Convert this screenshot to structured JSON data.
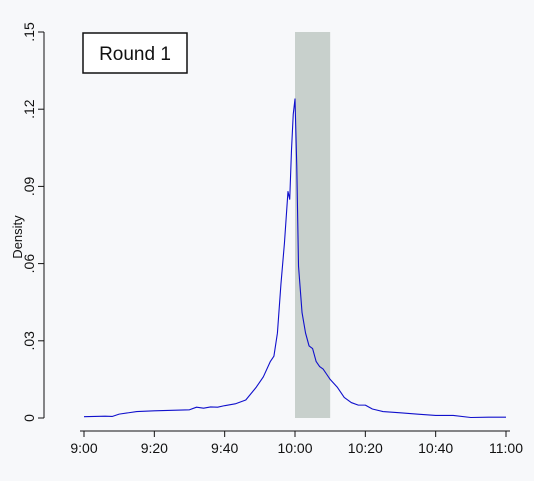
{
  "chart_data": {
    "type": "line",
    "panel_label": "Round 1",
    "xlabel": "",
    "ylabel": "Density",
    "x_unit": "time of day",
    "xlim": [
      "9:00",
      "11:00"
    ],
    "ylim": [
      0,
      0.15
    ],
    "x_ticks": [
      "9:00",
      "9:20",
      "9:40",
      "10:00",
      "10:20",
      "10:40",
      "11:00"
    ],
    "y_ticks": [
      "0",
      ".03",
      ".06",
      ".09",
      ".12",
      ".15"
    ],
    "grid": false,
    "legend": "none",
    "shaded_band": {
      "from": "10:00",
      "to": "10:10",
      "color": "#c8d0cc"
    },
    "line_color": "#1010cc",
    "series": [
      {
        "x": [
          "9:00",
          "9:06",
          "9:08",
          "9:10",
          "9:15",
          "9:20",
          "9:25",
          "9:30",
          "9:32",
          "9:34",
          "9:36",
          "9:38",
          "9:40",
          "9:43",
          "9:46",
          "9:49",
          "9:51",
          "9:53",
          "9:54",
          "9:55",
          "9:56",
          "9:57",
          "9:58",
          "9:58:30",
          "9:59",
          "9:59:30",
          "10:00",
          "10:00:30",
          "10:01",
          "10:02",
          "10:03",
          "10:04",
          "10:05",
          "10:06",
          "10:07",
          "10:08",
          "10:09",
          "10:10",
          "10:12",
          "10:14",
          "10:16",
          "10:18",
          "10:20",
          "10:22",
          "10:25",
          "10:30",
          "10:35",
          "10:40",
          "10:45",
          "10:50",
          "10:55",
          "11:00"
        ],
        "values": [
          0.0005,
          0.0007,
          0.0006,
          0.0015,
          0.0025,
          0.0028,
          0.003,
          0.0032,
          0.0042,
          0.0038,
          0.0043,
          0.0042,
          0.0048,
          0.0055,
          0.007,
          0.012,
          0.016,
          0.022,
          0.024,
          0.033,
          0.052,
          0.068,
          0.088,
          0.085,
          0.104,
          0.118,
          0.124,
          0.098,
          0.059,
          0.041,
          0.033,
          0.028,
          0.027,
          0.022,
          0.02,
          0.019,
          0.017,
          0.015,
          0.012,
          0.008,
          0.006,
          0.005,
          0.005,
          0.0035,
          0.0025,
          0.002,
          0.0015,
          0.001,
          0.001,
          0.0002,
          0.0003,
          0.0003
        ]
      }
    ]
  }
}
